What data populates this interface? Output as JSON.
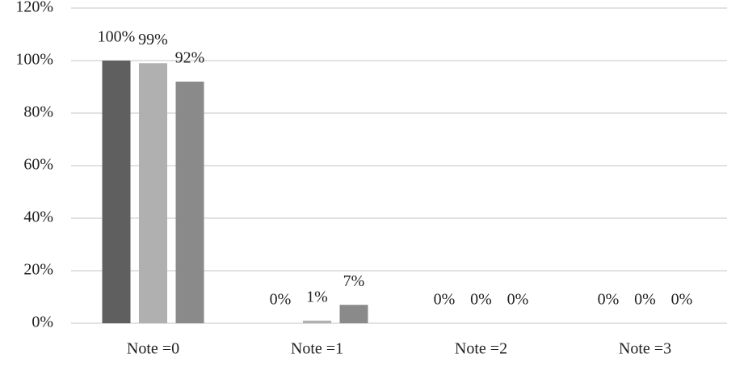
{
  "chart_data": {
    "type": "bar",
    "categories": [
      "Note =0",
      "Note =1",
      "Note =2",
      "Note =3"
    ],
    "series": [
      {
        "color": "#5f5f5f",
        "values": [
          100,
          0,
          0,
          0
        ],
        "value_labels": [
          "100%",
          "0%",
          "0%",
          "0%"
        ]
      },
      {
        "color": "#b0b0b0",
        "values": [
          99,
          1,
          0,
          0
        ],
        "value_labels": [
          "99%",
          "1%",
          "0%",
          "0%"
        ]
      },
      {
        "color": "#8a8a8a",
        "values": [
          92,
          7,
          0,
          0
        ],
        "value_labels": [
          "92%",
          "7%",
          "0%",
          "0%"
        ]
      }
    ],
    "ylim": [
      0,
      120
    ],
    "yticks": [
      {
        "value": 0,
        "label": "0%"
      },
      {
        "value": 20,
        "label": "20%"
      },
      {
        "value": 40,
        "label": "40%"
      },
      {
        "value": 60,
        "label": "60%"
      },
      {
        "value": 80,
        "label": "80%"
      },
      {
        "value": 100,
        "label": "100%"
      },
      {
        "value": 120,
        "label": "120%"
      }
    ],
    "grid": true
  }
}
